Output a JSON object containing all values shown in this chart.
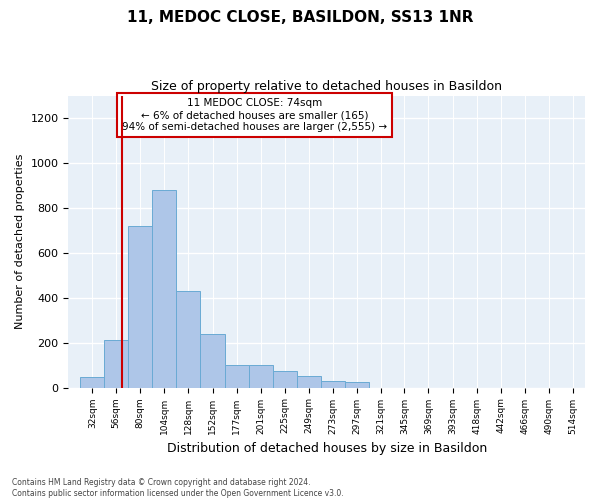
{
  "title": "11, MEDOC CLOSE, BASILDON, SS13 1NR",
  "subtitle": "Size of property relative to detached houses in Basildon",
  "xlabel": "Distribution of detached houses by size in Basildon",
  "ylabel": "Number of detached properties",
  "footnote1": "Contains HM Land Registry data © Crown copyright and database right 2024.",
  "footnote2": "Contains public sector information licensed under the Open Government Licence v3.0.",
  "annotation_title": "11 MEDOC CLOSE: 74sqm",
  "annotation_line2": "← 6% of detached houses are smaller (165)",
  "annotation_line3": "94% of semi-detached houses are larger (2,555) →",
  "property_size_sqm": 74,
  "bar_left_edges": [
    32,
    56,
    80,
    104,
    128,
    152,
    177,
    201,
    225,
    249,
    273,
    297,
    321,
    345,
    369,
    393,
    418,
    442,
    466,
    490
  ],
  "bar_widths": [
    24,
    24,
    24,
    24,
    24,
    25,
    24,
    24,
    24,
    24,
    24,
    24,
    24,
    24,
    24,
    25,
    24,
    24,
    24,
    24
  ],
  "bar_heights": [
    45,
    210,
    720,
    880,
    430,
    240,
    100,
    100,
    75,
    50,
    30,
    25,
    0,
    0,
    0,
    0,
    0,
    0,
    0,
    0
  ],
  "bar_color": "#aec6e8",
  "bar_edge_color": "#6aaad4",
  "vline_color": "#cc0000",
  "annotation_box_edge": "#cc0000",
  "annotation_box_face": "#ffffff",
  "plot_bg_color": "#e8f0f8",
  "fig_bg_color": "#ffffff",
  "ylim": [
    0,
    1300
  ],
  "yticks": [
    0,
    200,
    400,
    600,
    800,
    1000,
    1200
  ],
  "grid_color": "#ffffff",
  "tick_labels": [
    "32sqm",
    "56sqm",
    "80sqm",
    "104sqm",
    "128sqm",
    "152sqm",
    "177sqm",
    "201sqm",
    "225sqm",
    "249sqm",
    "273sqm",
    "297sqm",
    "321sqm",
    "345sqm",
    "369sqm",
    "393sqm",
    "418sqm",
    "442sqm",
    "466sqm",
    "490sqm",
    "514sqm"
  ]
}
